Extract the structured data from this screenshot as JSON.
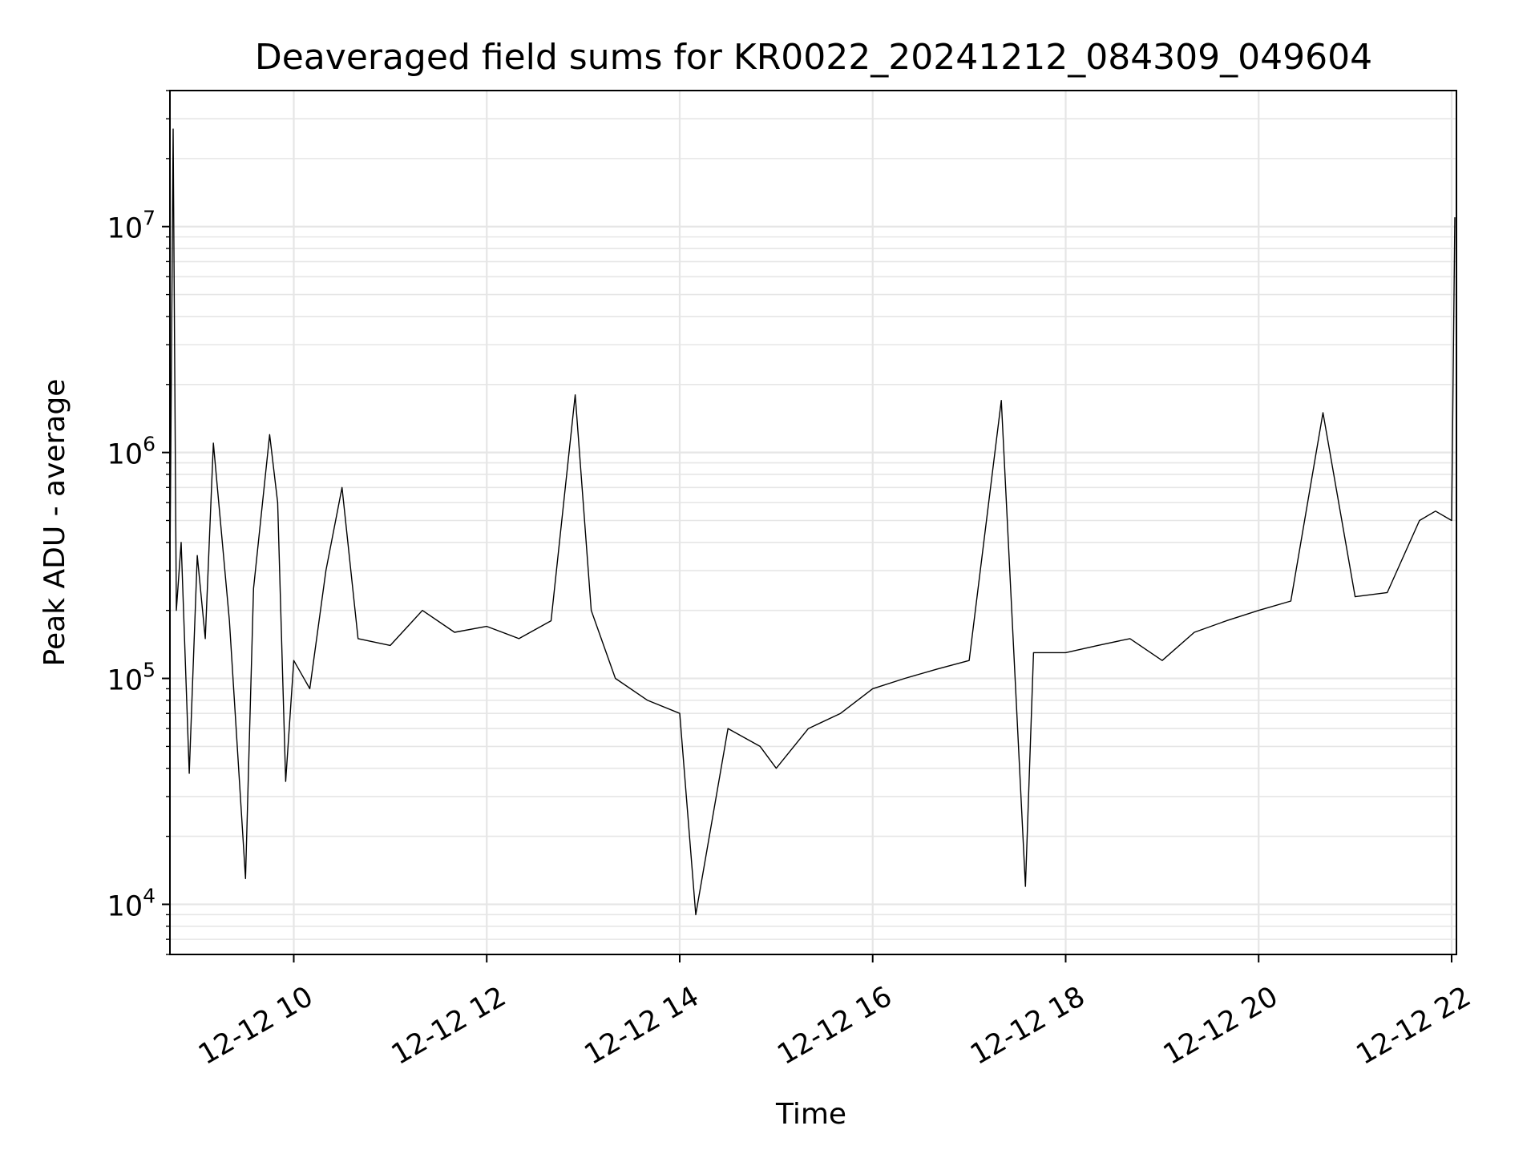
{
  "chart_data": {
    "type": "line",
    "title": "Deaveraged field sums for KR0022_20241212_084309_049604",
    "xlabel": "Time",
    "ylabel": "Peak ADU - average",
    "yscale": "log",
    "grid": true,
    "line_color": "#000000",
    "grid_color": "#e6e6e6",
    "xlim": [
      "2024-12-12 08:43",
      "2024-12-12 22:03"
    ],
    "ylim": [
      6000,
      40000000
    ],
    "x_ticks": [
      {
        "x": "2024-12-12 10:00",
        "label": "12-12 10"
      },
      {
        "x": "2024-12-12 12:00",
        "label": "12-12 12"
      },
      {
        "x": "2024-12-12 14:00",
        "label": "12-12 14"
      },
      {
        "x": "2024-12-12 16:00",
        "label": "12-12 16"
      },
      {
        "x": "2024-12-12 18:00",
        "label": "12-12 18"
      },
      {
        "x": "2024-12-12 20:00",
        "label": "12-12 20"
      },
      {
        "x": "2024-12-12 22:00",
        "label": "12-12 22"
      }
    ],
    "y_ticks": [
      {
        "y": 10000,
        "base": "10",
        "exp": "4"
      },
      {
        "y": 100000,
        "base": "10",
        "exp": "5"
      },
      {
        "y": 1000000,
        "base": "10",
        "exp": "6"
      },
      {
        "y": 10000000,
        "base": "10",
        "exp": "7"
      }
    ],
    "series": [
      {
        "points": [
          [
            "2024-12-12 08:43",
            300000
          ],
          [
            "2024-12-12 08:45",
            27000000
          ],
          [
            "2024-12-12 08:47",
            200000
          ],
          [
            "2024-12-12 08:50",
            400000
          ],
          [
            "2024-12-12 08:55",
            38000
          ],
          [
            "2024-12-12 09:00",
            350000
          ],
          [
            "2024-12-12 09:05",
            150000
          ],
          [
            "2024-12-12 09:10",
            1100000
          ],
          [
            "2024-12-12 09:20",
            180000
          ],
          [
            "2024-12-12 09:30",
            13000
          ],
          [
            "2024-12-12 09:35",
            250000
          ],
          [
            "2024-12-12 09:45",
            1200000
          ],
          [
            "2024-12-12 09:50",
            600000
          ],
          [
            "2024-12-12 09:55",
            35000
          ],
          [
            "2024-12-12 10:00",
            120000
          ],
          [
            "2024-12-12 10:10",
            90000
          ],
          [
            "2024-12-12 10:20",
            300000
          ],
          [
            "2024-12-12 10:30",
            700000
          ],
          [
            "2024-12-12 10:40",
            150000
          ],
          [
            "2024-12-12 11:00",
            140000
          ],
          [
            "2024-12-12 11:20",
            200000
          ],
          [
            "2024-12-12 11:40",
            160000
          ],
          [
            "2024-12-12 12:00",
            170000
          ],
          [
            "2024-12-12 12:20",
            150000
          ],
          [
            "2024-12-12 12:40",
            180000
          ],
          [
            "2024-12-12 12:55",
            1800000
          ],
          [
            "2024-12-12 13:05",
            200000
          ],
          [
            "2024-12-12 13:20",
            100000
          ],
          [
            "2024-12-12 13:40",
            80000
          ],
          [
            "2024-12-12 14:00",
            70000
          ],
          [
            "2024-12-12 14:10",
            9000
          ],
          [
            "2024-12-12 14:30",
            60000
          ],
          [
            "2024-12-12 14:50",
            50000
          ],
          [
            "2024-12-12 15:00",
            40000
          ],
          [
            "2024-12-12 15:20",
            60000
          ],
          [
            "2024-12-12 15:40",
            70000
          ],
          [
            "2024-12-12 16:00",
            90000
          ],
          [
            "2024-12-12 16:20",
            100000
          ],
          [
            "2024-12-12 16:40",
            110000
          ],
          [
            "2024-12-12 17:00",
            120000
          ],
          [
            "2024-12-12 17:20",
            1700000
          ],
          [
            "2024-12-12 17:35",
            12000
          ],
          [
            "2024-12-12 17:40",
            130000
          ],
          [
            "2024-12-12 18:00",
            130000
          ],
          [
            "2024-12-12 18:20",
            140000
          ],
          [
            "2024-12-12 18:40",
            150000
          ],
          [
            "2024-12-12 19:00",
            120000
          ],
          [
            "2024-12-12 19:20",
            160000
          ],
          [
            "2024-12-12 19:40",
            180000
          ],
          [
            "2024-12-12 20:00",
            200000
          ],
          [
            "2024-12-12 20:20",
            220000
          ],
          [
            "2024-12-12 20:40",
            1500000
          ],
          [
            "2024-12-12 21:00",
            230000
          ],
          [
            "2024-12-12 21:20",
            240000
          ],
          [
            "2024-12-12 21:40",
            500000
          ],
          [
            "2024-12-12 21:50",
            550000
          ],
          [
            "2024-12-12 22:00",
            500000
          ],
          [
            "2024-12-12 22:02",
            11000000
          ]
        ]
      }
    ]
  }
}
